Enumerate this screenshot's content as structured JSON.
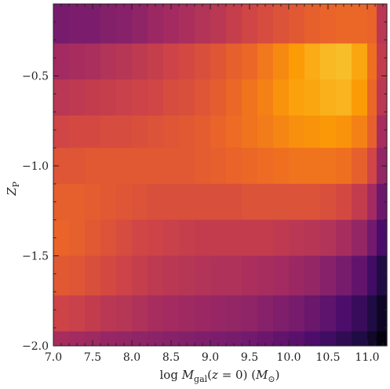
{
  "chart_data": {
    "type": "heatmap",
    "xlabel": "log M_gal(z = 0) (M_⊙)",
    "ylabel": "Z_P",
    "x_ticks": [
      "7.0",
      "7.5",
      "8.0",
      "8.5",
      "9.0",
      "9.5",
      "10.0",
      "10.5",
      "11.0"
    ],
    "y_ticks": [
      "−0.5",
      "−1.0",
      "−1.5",
      "−2.0"
    ],
    "xlim": [
      7.0,
      11.25
    ],
    "ylim": [
      -2.0,
      -0.1
    ],
    "x_edges": [
      7.0,
      7.2,
      7.4,
      7.6,
      7.8,
      8.0,
      8.2,
      8.4,
      8.6,
      8.8,
      9.0,
      9.2,
      9.4,
      9.6,
      9.8,
      10.0,
      10.2,
      10.4,
      10.6,
      10.8,
      11.0,
      11.12,
      11.25
    ],
    "y_edges": [
      -0.1,
      -0.32,
      -0.52,
      -0.72,
      -0.9,
      -1.1,
      -1.3,
      -1.5,
      -1.72,
      -1.92,
      -2.0
    ],
    "colormap": [
      "#000004",
      "#1b0c41",
      "#4a0c6b",
      "#781c6d",
      "#a52c60",
      "#cf4446",
      "#ed6925",
      "#fb9b06",
      "#f7d13d",
      "#fcffa4"
    ],
    "values": [
      [
        0.33,
        0.34,
        0.34,
        0.36,
        0.37,
        0.39,
        0.42,
        0.44,
        0.46,
        0.48,
        0.5,
        0.53,
        0.56,
        0.58,
        0.6,
        0.62,
        0.64,
        0.65,
        0.66,
        0.66,
        0.65,
        0.5
      ],
      [
        0.44,
        0.45,
        0.46,
        0.48,
        0.49,
        0.51,
        0.53,
        0.55,
        0.57,
        0.59,
        0.61,
        0.64,
        0.66,
        0.7,
        0.74,
        0.78,
        0.81,
        0.84,
        0.85,
        0.8,
        0.68,
        0.52
      ],
      [
        0.5,
        0.51,
        0.52,
        0.53,
        0.54,
        0.55,
        0.56,
        0.58,
        0.59,
        0.61,
        0.63,
        0.66,
        0.69,
        0.72,
        0.76,
        0.79,
        0.8,
        0.82,
        0.83,
        0.78,
        0.66,
        0.5
      ],
      [
        0.56,
        0.57,
        0.57,
        0.58,
        0.58,
        0.59,
        0.6,
        0.61,
        0.62,
        0.63,
        0.65,
        0.67,
        0.69,
        0.71,
        0.73,
        0.75,
        0.76,
        0.77,
        0.76,
        0.72,
        0.64,
        0.45
      ],
      [
        0.61,
        0.61,
        0.62,
        0.62,
        0.62,
        0.62,
        0.62,
        0.62,
        0.62,
        0.63,
        0.64,
        0.65,
        0.66,
        0.67,
        0.68,
        0.69,
        0.69,
        0.69,
        0.68,
        0.64,
        0.56,
        0.4
      ],
      [
        0.64,
        0.64,
        0.63,
        0.62,
        0.61,
        0.6,
        0.59,
        0.59,
        0.59,
        0.59,
        0.59,
        0.59,
        0.6,
        0.6,
        0.6,
        0.6,
        0.6,
        0.59,
        0.57,
        0.52,
        0.44,
        0.3
      ],
      [
        0.65,
        0.64,
        0.62,
        0.6,
        0.58,
        0.56,
        0.55,
        0.54,
        0.53,
        0.52,
        0.52,
        0.52,
        0.52,
        0.52,
        0.51,
        0.5,
        0.49,
        0.48,
        0.45,
        0.4,
        0.32,
        0.22
      ],
      [
        0.62,
        0.61,
        0.59,
        0.57,
        0.55,
        0.53,
        0.51,
        0.5,
        0.49,
        0.48,
        0.47,
        0.47,
        0.46,
        0.45,
        0.44,
        0.42,
        0.4,
        0.37,
        0.33,
        0.28,
        0.2,
        0.12
      ],
      [
        0.55,
        0.54,
        0.52,
        0.5,
        0.49,
        0.47,
        0.45,
        0.44,
        0.43,
        0.42,
        0.41,
        0.4,
        0.39,
        0.37,
        0.35,
        0.33,
        0.3,
        0.27,
        0.23,
        0.18,
        0.12,
        0.06
      ],
      [
        0.45,
        0.44,
        0.43,
        0.41,
        0.4,
        0.39,
        0.38,
        0.37,
        0.36,
        0.35,
        0.34,
        0.33,
        0.32,
        0.3,
        0.28,
        0.26,
        0.23,
        0.2,
        0.16,
        0.12,
        0.07,
        0.02
      ]
    ]
  }
}
